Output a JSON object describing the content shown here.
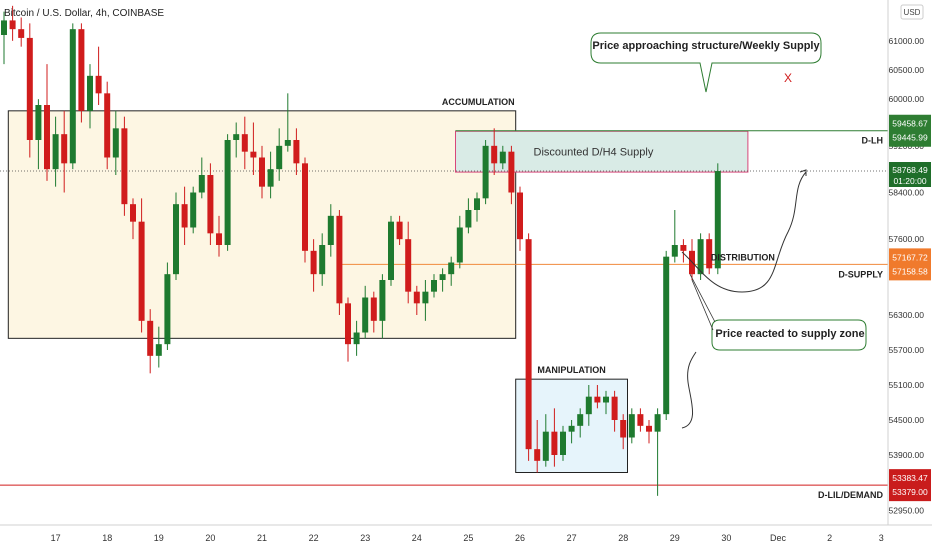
{
  "header": {
    "symbol_title": "Bitcoin / U.S. Dollar, 4h, COINBASE",
    "currency_label": "USD"
  },
  "colors": {
    "up": "#1e7a2f",
    "down": "#d01c1c",
    "accumulation_fill": "#fdf6e3",
    "manipulation_fill": "#e6f4fb",
    "supply_fill": "#d9ebe6",
    "supply_border": "#d9477a",
    "orange_line": "#f08a3c",
    "green_line": "#2e7d32",
    "red_line": "#d01c1c",
    "axis_text": "#333333"
  },
  "chart_data": {
    "type": "candlestick",
    "title": "Bitcoin / U.S. Dollar, 4h, COINBASE",
    "ylim": [
      52700,
      61700
    ],
    "y_ticks": [
      52950,
      53900,
      54500,
      55100,
      55700,
      56300,
      57600,
      58400,
      59200,
      60000,
      60500,
      61000
    ],
    "y_tick_labels": [
      "52950.00",
      "53900.00",
      "54500.00",
      "55100.00",
      "55700.00",
      "56300.00",
      "57600.00",
      "58400.00",
      "59200.00",
      "60000.00",
      "60500.00",
      "61000.00"
    ],
    "x_ticks": [
      {
        "label": "17",
        "index": 6
      },
      {
        "label": "18",
        "index": 12
      },
      {
        "label": "19",
        "index": 18
      },
      {
        "label": "20",
        "index": 24
      },
      {
        "label": "21",
        "index": 30
      },
      {
        "label": "22",
        "index": 36
      },
      {
        "label": "23",
        "index": 42
      },
      {
        "label": "24",
        "index": 48
      },
      {
        "label": "25",
        "index": 54
      },
      {
        "label": "26",
        "index": 60
      },
      {
        "label": "27",
        "index": 66
      },
      {
        "label": "28",
        "index": 72
      },
      {
        "label": "29",
        "index": 78
      },
      {
        "label": "30",
        "index": 84
      },
      {
        "label": "Dec",
        "index": 90
      },
      {
        "label": "2",
        "index": 96
      },
      {
        "label": "3",
        "index": 102
      }
    ],
    "candles": [
      {
        "o": 61100,
        "h": 61500,
        "l": 60600,
        "c": 61350
      },
      {
        "o": 61350,
        "h": 61600,
        "l": 61000,
        "c": 61200
      },
      {
        "o": 61200,
        "h": 61400,
        "l": 60900,
        "c": 61050
      },
      {
        "o": 61050,
        "h": 61300,
        "l": 59000,
        "c": 59300
      },
      {
        "o": 59300,
        "h": 60000,
        "l": 58800,
        "c": 59900
      },
      {
        "o": 59900,
        "h": 60600,
        "l": 58600,
        "c": 58800
      },
      {
        "o": 58800,
        "h": 59700,
        "l": 58500,
        "c": 59400
      },
      {
        "o": 59400,
        "h": 59800,
        "l": 58400,
        "c": 58900
      },
      {
        "o": 58900,
        "h": 61300,
        "l": 58800,
        "c": 61200
      },
      {
        "o": 61200,
        "h": 61300,
        "l": 59600,
        "c": 59800
      },
      {
        "o": 59800,
        "h": 60600,
        "l": 59500,
        "c": 60400
      },
      {
        "o": 60400,
        "h": 60900,
        "l": 59900,
        "c": 60100
      },
      {
        "o": 60100,
        "h": 60300,
        "l": 58800,
        "c": 59000
      },
      {
        "o": 59000,
        "h": 59800,
        "l": 58700,
        "c": 59500
      },
      {
        "o": 59500,
        "h": 59700,
        "l": 58000,
        "c": 58200
      },
      {
        "o": 58200,
        "h": 58300,
        "l": 57600,
        "c": 57900
      },
      {
        "o": 57900,
        "h": 58300,
        "l": 56000,
        "c": 56200
      },
      {
        "o": 56200,
        "h": 56400,
        "l": 55300,
        "c": 55600
      },
      {
        "o": 55600,
        "h": 56100,
        "l": 55400,
        "c": 55800
      },
      {
        "o": 55800,
        "h": 57200,
        "l": 55700,
        "c": 57000
      },
      {
        "o": 57000,
        "h": 58400,
        "l": 56900,
        "c": 58200
      },
      {
        "o": 58200,
        "h": 58500,
        "l": 57500,
        "c": 57800
      },
      {
        "o": 57800,
        "h": 58500,
        "l": 57700,
        "c": 58400
      },
      {
        "o": 58400,
        "h": 59000,
        "l": 58300,
        "c": 58700
      },
      {
        "o": 58700,
        "h": 58900,
        "l": 57500,
        "c": 57700
      },
      {
        "o": 57700,
        "h": 58000,
        "l": 57300,
        "c": 57500
      },
      {
        "o": 57500,
        "h": 59400,
        "l": 57400,
        "c": 59300
      },
      {
        "o": 59300,
        "h": 59600,
        "l": 59000,
        "c": 59400
      },
      {
        "o": 59400,
        "h": 59700,
        "l": 58800,
        "c": 59100
      },
      {
        "o": 59100,
        "h": 59600,
        "l": 58700,
        "c": 59000
      },
      {
        "o": 59000,
        "h": 59200,
        "l": 58300,
        "c": 58500
      },
      {
        "o": 58500,
        "h": 59100,
        "l": 58300,
        "c": 58800
      },
      {
        "o": 58800,
        "h": 59500,
        "l": 58600,
        "c": 59200
      },
      {
        "o": 59200,
        "h": 60100,
        "l": 59100,
        "c": 59300
      },
      {
        "o": 59300,
        "h": 59500,
        "l": 58700,
        "c": 58900
      },
      {
        "o": 58900,
        "h": 59000,
        "l": 57200,
        "c": 57400
      },
      {
        "o": 57400,
        "h": 57600,
        "l": 56700,
        "c": 57000
      },
      {
        "o": 57000,
        "h": 57700,
        "l": 56800,
        "c": 57500
      },
      {
        "o": 57500,
        "h": 58200,
        "l": 57300,
        "c": 58000
      },
      {
        "o": 58000,
        "h": 58100,
        "l": 56300,
        "c": 56500
      },
      {
        "o": 56500,
        "h": 56600,
        "l": 55500,
        "c": 55800
      },
      {
        "o": 55800,
        "h": 56200,
        "l": 55600,
        "c": 56000
      },
      {
        "o": 56000,
        "h": 56800,
        "l": 55900,
        "c": 56600
      },
      {
        "o": 56600,
        "h": 56700,
        "l": 56000,
        "c": 56200
      },
      {
        "o": 56200,
        "h": 57000,
        "l": 55900,
        "c": 56900
      },
      {
        "o": 56900,
        "h": 58000,
        "l": 56800,
        "c": 57900
      },
      {
        "o": 57900,
        "h": 58000,
        "l": 57500,
        "c": 57600
      },
      {
        "o": 57600,
        "h": 57900,
        "l": 56500,
        "c": 56700
      },
      {
        "o": 56700,
        "h": 56800,
        "l": 56300,
        "c": 56500
      },
      {
        "o": 56500,
        "h": 56900,
        "l": 56200,
        "c": 56700
      },
      {
        "o": 56700,
        "h": 57000,
        "l": 56600,
        "c": 56900
      },
      {
        "o": 56900,
        "h": 57100,
        "l": 56700,
        "c": 57000
      },
      {
        "o": 57000,
        "h": 57300,
        "l": 56800,
        "c": 57200
      },
      {
        "o": 57200,
        "h": 58000,
        "l": 57100,
        "c": 57800
      },
      {
        "o": 57800,
        "h": 58300,
        "l": 57700,
        "c": 58100
      },
      {
        "o": 58100,
        "h": 58400,
        "l": 57900,
        "c": 58300
      },
      {
        "o": 58300,
        "h": 59300,
        "l": 58200,
        "c": 59200
      },
      {
        "o": 59200,
        "h": 59500,
        "l": 58700,
        "c": 58900
      },
      {
        "o": 58900,
        "h": 59200,
        "l": 58800,
        "c": 59100
      },
      {
        "o": 59100,
        "h": 59200,
        "l": 58200,
        "c": 58400
      },
      {
        "o": 58400,
        "h": 58500,
        "l": 57400,
        "c": 57600
      },
      {
        "o": 57600,
        "h": 57700,
        "l": 53800,
        "c": 54000
      },
      {
        "o": 54000,
        "h": 54500,
        "l": 53600,
        "c": 53800
      },
      {
        "o": 53800,
        "h": 54600,
        "l": 53700,
        "c": 54300
      },
      {
        "o": 54300,
        "h": 54700,
        "l": 53700,
        "c": 53900
      },
      {
        "o": 53900,
        "h": 54400,
        "l": 53800,
        "c": 54300
      },
      {
        "o": 54300,
        "h": 54500,
        "l": 54100,
        "c": 54400
      },
      {
        "o": 54400,
        "h": 54700,
        "l": 54200,
        "c": 54600
      },
      {
        "o": 54600,
        "h": 55100,
        "l": 54400,
        "c": 54900
      },
      {
        "o": 54900,
        "h": 55100,
        "l": 54700,
        "c": 54800
      },
      {
        "o": 54800,
        "h": 55000,
        "l": 54600,
        "c": 54900
      },
      {
        "o": 54900,
        "h": 55000,
        "l": 54300,
        "c": 54500
      },
      {
        "o": 54500,
        "h": 54600,
        "l": 54000,
        "c": 54200
      },
      {
        "o": 54200,
        "h": 54700,
        "l": 54100,
        "c": 54600
      },
      {
        "o": 54600,
        "h": 54700,
        "l": 54300,
        "c": 54400
      },
      {
        "o": 54400,
        "h": 54500,
        "l": 54100,
        "c": 54300
      },
      {
        "o": 54300,
        "h": 54700,
        "l": 53200,
        "c": 54600
      },
      {
        "o": 54600,
        "h": 57400,
        "l": 54500,
        "c": 57300
      },
      {
        "o": 57300,
        "h": 58100,
        "l": 57200,
        "c": 57500
      },
      {
        "o": 57500,
        "h": 57600,
        "l": 57200,
        "c": 57400
      },
      {
        "o": 57400,
        "h": 57600,
        "l": 56900,
        "c": 57000
      },
      {
        "o": 57000,
        "h": 57700,
        "l": 56900,
        "c": 57600
      },
      {
        "o": 57600,
        "h": 57700,
        "l": 57000,
        "c": 57100
      },
      {
        "o": 57100,
        "h": 58900,
        "l": 57000,
        "c": 58768
      }
    ],
    "price_levels": [
      {
        "name": "D-LH",
        "value": 59458.67,
        "labels": [
          "59458.67",
          "59445.99"
        ],
        "color": "green"
      },
      {
        "name": "D-SUPPLY",
        "value": 57167.72,
        "labels": [
          "57167.72",
          "57158.58"
        ],
        "color": "orange"
      },
      {
        "name": "D-LIL/DEMAND",
        "value": 53383.47,
        "labels": [
          "53383.47",
          "53379.00"
        ],
        "color": "red"
      }
    ],
    "last_price": {
      "value": 58768.49,
      "label": "58768.49",
      "countdown": "01:20:00"
    },
    "zones": [
      {
        "label": "ACCUMULATION",
        "x_start": 0.5,
        "x_end": 59.5,
        "y_top": 59800,
        "y_bottom": 55900
      },
      {
        "label": "Discounted D/H4 Supply",
        "x_start": 52.5,
        "x_end": 86.5,
        "y_top": 59450,
        "y_bottom": 58750
      },
      {
        "label": "MANIPULATION",
        "x_start": 59.5,
        "x_end": 72.5,
        "y_top": 55200,
        "y_bottom": 53600
      }
    ],
    "annotations": {
      "distribution": "DISTRIBUTION",
      "callout_top": "Price approaching structure/Weekly Supply",
      "callout_bottom": "Price reacted to supply zone",
      "x_mark": "X"
    }
  }
}
